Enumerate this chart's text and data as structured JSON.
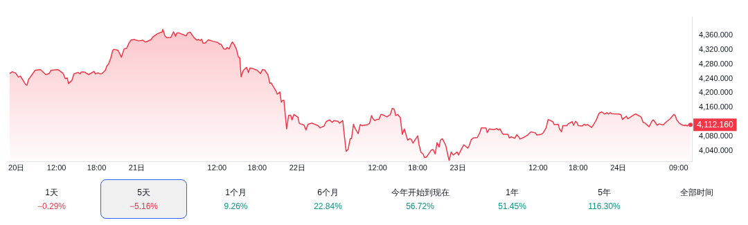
{
  "chart_data": {
    "type": "area",
    "x": [
      "--10-20T05:00",
      "--10-20T05:24",
      "--10-20T05:54",
      "--10-20T06:18",
      "--10-20T06:36",
      "--10-20T07:24",
      "--10-20T07:36",
      "--10-20T07:48",
      "--10-20T08:48",
      "--10-20T09:36",
      "--10-20T10:24",
      "--10-20T10:54",
      "--10-20T11:12",
      "--10-20T12:12",
      "--10-20T13:00",
      "--10-20T13:18",
      "--10-20T13:36",
      "--10-20T13:48",
      "--10-20T14:18",
      "--10-20T14:36",
      "--10-20T15:12",
      "--10-20T15:30",
      "--10-20T15:42",
      "--10-20T16:12",
      "--10-20T16:48",
      "--10-20T17:36",
      "--10-20T17:48",
      "--10-20T18:12",
      "--10-20T18:30",
      "--10-20T18:48",
      "--10-20T19:18",
      "--10-20T19:30",
      "--10-20T19:48",
      "--10-20T20:06",
      "--10-20T20:24",
      "--10-20T20:36",
      "--10-20T21:12",
      "--10-20T21:42",
      "--10-20T22:06",
      "--10-20T22:30",
      "--10-20T22:48",
      "--10-20T23:06",
      "--10-20T23:36",
      "--10-21T00:18",
      "--10-21T00:54",
      "--10-21T01:18",
      "--10-21T02:06",
      "--10-21T02:24",
      "--10-21T03:06",
      "--10-21T03:48",
      "--10-21T03:54",
      "--10-21T04:12",
      "--10-21T04:30",
      "--10-21T05:06",
      "--10-21T05:30",
      "--10-21T05:48",
      "--10-21T06:00",
      "--10-21T06:18",
      "--10-21T07:24",
      "--10-21T07:36",
      "--10-21T08:00",
      "--10-21T08:36",
      "--10-21T09:00",
      "--10-21T09:12",
      "--10-21T09:30",
      "--10-21T09:42",
      "--10-21T09:54",
      "--10-21T10:12",
      "--10-21T10:42",
      "--10-21T11:24",
      "--10-21T12:06",
      "--10-21T12:24",
      "--10-21T12:36",
      "--10-21T13:00",
      "--10-21T13:18",
      "--10-21T13:30",
      "--10-21T13:48",
      "--10-21T14:06",
      "--10-21T14:18",
      "--10-21T14:36",
      "--10-21T14:54",
      "--10-21T15:12",
      "--10-21T15:24",
      "--10-21T15:36",
      "--10-21T15:54",
      "--10-21T16:24",
      "--10-21T16:42",
      "--10-21T16:54",
      "--10-21T17:18",
      "--10-21T18:00",
      "--10-21T18:30",
      "--10-21T18:48",
      "--10-21T19:06",
      "--10-21T19:36",
      "--10-21T19:54",
      "--10-21T20:06",
      "--10-21T20:48",
      "--10-21T21:00",
      "--10-21T21:24",
      "--10-21T21:36",
      "--10-21T21:48",
      "--10-21T22:00",
      "--10-21T22:24",
      "--10-21T22:42",
      "--10-21T23:00",
      "--10-21T23:12",
      "--10-21T23:30",
      "--10-22T00:06",
      "--10-22T00:18",
      "--10-22T01:00",
      "--10-22T01:18",
      "--10-22T01:36",
      "--10-22T02:12",
      "--10-22T03:06",
      "--10-22T03:24",
      "--10-22T04:00",
      "--10-22T04:18",
      "--10-22T04:48",
      "--10-22T05:12",
      "--10-22T05:30",
      "--10-22T06:06",
      "--10-22T06:18",
      "--10-22T06:48",
      "--10-22T07:00",
      "--10-22T07:18",
      "--10-22T07:36",
      "--10-22T07:54",
      "--10-22T08:06",
      "--10-22T08:24",
      "--10-22T08:36",
      "--10-22T09:06",
      "--10-22T09:24",
      "--10-22T09:42",
      "--10-22T10:30",
      "--10-22T10:48",
      "--10-22T11:06",
      "--10-22T11:18",
      "--10-22T11:36",
      "--10-22T11:54",
      "--10-22T12:12",
      "--10-22T12:30",
      "--10-22T12:54",
      "--10-22T13:24",
      "--10-22T13:54",
      "--10-22T14:12",
      "--10-22T14:30",
      "--10-22T14:42",
      "--10-22T15:00",
      "--10-22T15:24",
      "--10-22T15:42",
      "--10-22T16:00",
      "--10-22T16:30",
      "--10-22T16:48",
      "--10-22T17:00",
      "--10-22T17:18",
      "--10-22T18:00",
      "--10-22T18:12",
      "--10-22T18:30",
      "--10-22T18:48",
      "--10-22T19:00",
      "--10-22T19:18",
      "--10-22T20:00",
      "--10-22T20:18",
      "--10-22T20:36",
      "--10-22T20:54",
      "--10-22T21:12",
      "--10-22T21:24",
      "--10-22T21:42",
      "--10-22T22:12",
      "--10-22T22:30",
      "--10-22T22:42",
      "--10-22T23:00",
      "--10-22T23:18",
      "--10-22T23:54",
      "--10-23T00:06",
      "--10-23T00:42",
      "--10-23T00:54",
      "--10-23T01:30",
      "--10-23T01:42",
      "--10-23T02:00",
      "--10-23T02:18",
      "--10-23T02:54",
      "--10-23T03:18",
      "--10-23T03:30",
      "--10-23T04:12",
      "--10-23T04:24",
      "--10-23T04:42",
      "--10-23T05:24",
      "--10-23T05:48",
      "--10-23T06:06",
      "--10-23T06:18",
      "--10-23T06:36",
      "--10-23T06:48",
      "--10-23T07:30",
      "--10-23T07:42",
      "--10-23T08:00",
      "--10-23T08:30",
      "--10-23T08:48",
      "--10-23T09:06",
      "--10-23T09:18",
      "--10-23T10:00",
      "--10-23T10:30",
      "--10-23T10:54",
      "--10-23T11:36",
      "--10-23T11:48",
      "--10-23T12:30",
      "--10-23T12:48",
      "--10-23T13:12",
      "--10-23T13:30",
      "--10-23T14:12",
      "--10-23T14:24",
      "--10-23T15:00",
      "--10-23T15:12",
      "--10-23T15:30",
      "--10-23T15:42",
      "--10-23T16:18",
      "--10-23T16:30",
      "--10-23T17:06",
      "--10-23T17:18",
      "--10-23T17:36",
      "--10-23T17:48",
      "--10-23T18:00",
      "--10-23T18:36",
      "--10-23T18:54",
      "--10-23T19:06",
      "--10-23T19:24",
      "--10-23T20:00",
      "--10-23T20:12",
      "--10-23T20:42",
      "--10-23T21:06",
      "--10-23T21:30",
      "--10-23T22:00",
      "--10-23T22:18",
      "--10-23T22:30",
      "--10-23T22:48",
      "--10-23T23:00",
      "--10-24T00:06",
      "--10-24T00:24",
      "--10-24T00:36",
      "--10-24T01:12",
      "--10-24T01:24",
      "--10-24T02:24",
      "--10-24T02:36",
      "--10-24T03:24",
      "--10-24T03:42",
      "--10-24T04:00",
      "--10-24T04:36",
      "--10-24T05:00",
      "--10-24T05:12",
      "--10-24T05:24",
      "--10-24T05:48",
      "--10-24T06:06",
      "--10-24T06:42",
      "--10-24T07:12",
      "--10-24T07:48",
      "--10-24T08:00",
      "--10-24T08:18",
      "--10-24T08:30",
      "--10-24T08:42",
      "--10-24T09:06",
      "--10-24T09:24",
      "--10-24T09:54",
      "--10-24T10:00",
      "--10-24T10:18",
      "--10-24T10:36",
      "--10-24T10:48"
    ],
    "series": [
      {
        "color": "#f23645",
        "values": [
          4254,
          4259,
          4255,
          4244,
          4247,
          4223,
          4222,
          4237,
          4263,
          4265,
          4251,
          4254,
          4263,
          4265,
          4254,
          4240,
          4242,
          4226,
          4235,
          4253,
          4257,
          4253,
          4258,
          4258,
          4251,
          4260,
          4253,
          4256,
          4253,
          4254,
          4263,
          4274,
          4281,
          4296,
          4318,
          4321,
          4318,
          4299,
          4322,
          4324,
          4337,
          4346,
          4348,
          4344,
          4346,
          4341,
          4347,
          4355,
          4364,
          4369,
          4376,
          4358,
          4353,
          4354,
          4369,
          4357,
          4366,
          4366,
          4358,
          4366,
          4368,
          4352,
          4346,
          4348,
          4345,
          4349,
          4338,
          4338,
          4347,
          4343,
          4340,
          4335,
          4335,
          4322,
          4321,
          4326,
          4322,
          4335,
          4341,
          4333,
          4321,
          4299,
          4297,
          4245,
          4262,
          4271,
          4257,
          4269,
          4268,
          4263,
          4254,
          4265,
          4264,
          4251,
          4227,
          4228,
          4206,
          4197,
          4203,
          4175,
          4180,
          4180,
          4101,
          4138,
          4139,
          4126,
          4141,
          4133,
          4116,
          4112,
          4098,
          4114,
          4117,
          4110,
          4104,
          4109,
          4121,
          4126,
          4119,
          4124,
          4122,
          4117,
          4124,
          4088,
          4039,
          4045,
          4074,
          4074,
          4114,
          4104,
          4088,
          4113,
          4110,
          4113,
          4116,
          4138,
          4129,
          4124,
          4127,
          4127,
          4141,
          4139,
          4134,
          4141,
          4158,
          4155,
          4138,
          4141,
          4132,
          4086,
          4101,
          4070,
          4074,
          4073,
          4062,
          4082,
          4057,
          4036,
          4032,
          4022,
          4023,
          4042,
          4044,
          4032,
          4063,
          4051,
          4070,
          4074,
          4055,
          4029,
          4014,
          4037,
          4029,
          4037,
          4029,
          4051,
          4057,
          4048,
          4055,
          4071,
          4076,
          4077,
          4091,
          4104,
          4104,
          4091,
          4101,
          4099,
          4102,
          4098,
          4101,
          4090,
          4086,
          4086,
          4076,
          4079,
          4075,
          4085,
          4079,
          4073,
          4079,
          4085,
          4093,
          4090,
          4084,
          4086,
          4091,
          4104,
          4127,
          4121,
          4113,
          4114,
          4101,
          4093,
          4110,
          4110,
          4115,
          4121,
          4111,
          4122,
          4119,
          4110,
          4109,
          4114,
          4111,
          4113,
          4105,
          4110,
          4126,
          4144,
          4148,
          4142,
          4146,
          4142,
          4146,
          4143,
          4142,
          4140,
          4127,
          4136,
          4129,
          4141,
          4142,
          4134,
          4119,
          4117,
          4107,
          4122,
          4126,
          4122,
          4111,
          4115,
          4112,
          4121,
          4130,
          4135,
          4141,
          4138,
          4127,
          4117,
          4113,
          4110,
          4112,
          4109,
          4115,
          4112
        ]
      }
    ],
    "xlim": [
      "--10-20T05:00",
      "--10-24T11:00"
    ],
    "xticks": [
      {
        "value": "--10-20T06:00",
        "label": "20日"
      },
      {
        "value": "--10-20T12:00",
        "label": "12:00"
      },
      {
        "value": "--10-20T18:00",
        "label": "18:00"
      },
      {
        "value": "--10-21",
        "label": "21日"
      },
      {
        "value": "--10-21T12:00",
        "label": "12:00"
      },
      {
        "value": "--10-21T18:00",
        "label": "18:00"
      },
      {
        "value": "--10-22",
        "label": "22日"
      },
      {
        "value": "--10-22T12:00",
        "label": "12:00"
      },
      {
        "value": "--10-22T18:00",
        "label": "18:00"
      },
      {
        "value": "--10-23",
        "label": "23日"
      },
      {
        "value": "--10-23T12:00",
        "label": "12:00"
      },
      {
        "value": "--10-23T18:00",
        "label": "18:00"
      },
      {
        "value": "--10-24",
        "label": "24日"
      },
      {
        "value": "--10-24T09:00",
        "label": "09:00"
      }
    ],
    "ylim": [
      4010,
      4410
    ],
    "yticks": [
      {
        "value": 4040,
        "label": "4,040.000"
      },
      {
        "value": 4080,
        "label": "4,080.000"
      },
      {
        "value": 4160,
        "label": "4,160.000"
      },
      {
        "value": 4200,
        "label": "4,200.000"
      },
      {
        "value": 4240,
        "label": "4,240.000"
      },
      {
        "value": 4280,
        "label": "4,280.000"
      },
      {
        "value": 4320,
        "label": "4,320.000"
      },
      {
        "value": 4360,
        "label": "4,360.000"
      }
    ],
    "annotations": [
      {
        "text": "4,112.160",
        "x": "--10-24T10:48",
        "y": 4112.16
      },
      "1天\n−0.29%",
      "5天\n−5.16%",
      "1个月\n9.26%",
      "6个月\n22.84%",
      "今年开始到现在\n56.72%",
      "1年\n51.45%",
      "5年\n116.30%",
      "全部时间"
    ]
  }
}
